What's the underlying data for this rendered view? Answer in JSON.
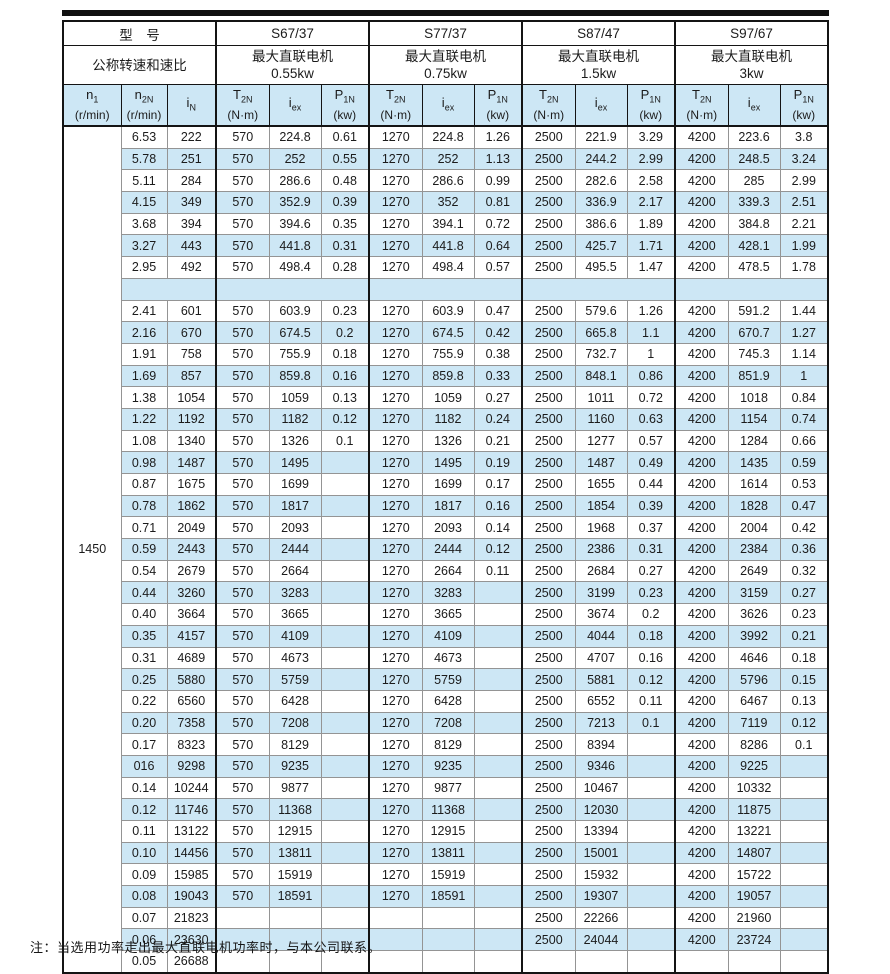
{
  "table": {
    "model_label": "型　号",
    "speed_ratio_label": "公称转速和速比",
    "models": [
      {
        "name": "S67/37",
        "motor_label": "最大直联电机",
        "power": "0.55kw"
      },
      {
        "name": "S77/37",
        "motor_label": "最大直联电机",
        "power": "0.75kw"
      },
      {
        "name": "S87/47",
        "motor_label": "最大直联电机",
        "power": "1.5kw"
      },
      {
        "name": "S97/67",
        "motor_label": "最大直联电机",
        "power": "3kw"
      }
    ],
    "columns": {
      "n1": {
        "base": "n",
        "sub": "1",
        "unit": "(r/min)"
      },
      "n2n": {
        "base": "n",
        "sub": "2N",
        "unit": "(r/min)"
      },
      "in": {
        "base": "i",
        "sub": "N",
        "unit": ""
      },
      "t2n": {
        "base": "T",
        "sub": "2N",
        "unit": "(N·m)"
      },
      "iex": {
        "base": "i",
        "sub": "ex",
        "unit": ""
      },
      "p1n": {
        "base": "P",
        "sub": "1N",
        "unit": "(kw)"
      }
    },
    "n1_value": "1450",
    "rows": [
      {
        "n2n": "6.53",
        "in": "222",
        "cells": [
          "570",
          "224.8",
          "0.61",
          "1270",
          "224.8",
          "1.26",
          "2500",
          "221.9",
          "3.29",
          "4200",
          "223.6",
          "3.8"
        ]
      },
      {
        "n2n": "5.78",
        "in": "251",
        "cells": [
          "570",
          "252",
          "0.55",
          "1270",
          "252",
          "1.13",
          "2500",
          "244.2",
          "2.99",
          "4200",
          "248.5",
          "3.24"
        ]
      },
      {
        "n2n": "5.11",
        "in": "284",
        "cells": [
          "570",
          "286.6",
          "0.48",
          "1270",
          "286.6",
          "0.99",
          "2500",
          "282.6",
          "2.58",
          "4200",
          "285",
          "2.99"
        ]
      },
      {
        "n2n": "4.15",
        "in": "349",
        "cells": [
          "570",
          "352.9",
          "0.39",
          "1270",
          "352",
          "0.81",
          "2500",
          "336.9",
          "2.17",
          "4200",
          "339.3",
          "2.51"
        ]
      },
      {
        "n2n": "3.68",
        "in": "394",
        "cells": [
          "570",
          "394.6",
          "0.35",
          "1270",
          "394.1",
          "0.72",
          "2500",
          "386.6",
          "1.89",
          "4200",
          "384.8",
          "2.21"
        ]
      },
      {
        "n2n": "3.27",
        "in": "443",
        "cells": [
          "570",
          "441.8",
          "0.31",
          "1270",
          "441.8",
          "0.64",
          "2500",
          "425.7",
          "1.71",
          "4200",
          "428.1",
          "1.99"
        ]
      },
      {
        "n2n": "2.95",
        "in": "492",
        "cells": [
          "570",
          "498.4",
          "0.28",
          "1270",
          "498.4",
          "0.57",
          "2500",
          "495.5",
          "1.47",
          "4200",
          "478.5",
          "1.78"
        ]
      },
      {
        "empty": true
      },
      {
        "n2n": "2.41",
        "in": "601",
        "cells": [
          "570",
          "603.9",
          "0.23",
          "1270",
          "603.9",
          "0.47",
          "2500",
          "579.6",
          "1.26",
          "4200",
          "591.2",
          "1.44"
        ]
      },
      {
        "n2n": "2.16",
        "in": "670",
        "cells": [
          "570",
          "674.5",
          "0.2",
          "1270",
          "674.5",
          "0.42",
          "2500",
          "665.8",
          "1.1",
          "4200",
          "670.7",
          "1.27"
        ]
      },
      {
        "n2n": "1.91",
        "in": "758",
        "cells": [
          "570",
          "755.9",
          "0.18",
          "1270",
          "755.9",
          "0.38",
          "2500",
          "732.7",
          "1",
          "4200",
          "745.3",
          "1.14"
        ]
      },
      {
        "n2n": "1.69",
        "in": "857",
        "cells": [
          "570",
          "859.8",
          "0.16",
          "1270",
          "859.8",
          "0.33",
          "2500",
          "848.1",
          "0.86",
          "4200",
          "851.9",
          "1"
        ]
      },
      {
        "n2n": "1.38",
        "in": "1054",
        "cells": [
          "570",
          "1059",
          "0.13",
          "1270",
          "1059",
          "0.27",
          "2500",
          "1011",
          "0.72",
          "4200",
          "1018",
          "0.84"
        ]
      },
      {
        "n2n": "1.22",
        "in": "1192",
        "cells": [
          "570",
          "1182",
          "0.12",
          "1270",
          "1182",
          "0.24",
          "2500",
          "1160",
          "0.63",
          "4200",
          "1154",
          "0.74"
        ]
      },
      {
        "n2n": "1.08",
        "in": "1340",
        "cells": [
          "570",
          "1326",
          "0.1",
          "1270",
          "1326",
          "0.21",
          "2500",
          "1277",
          "0.57",
          "4200",
          "1284",
          "0.66"
        ]
      },
      {
        "n2n": "0.98",
        "in": "1487",
        "cells": [
          "570",
          "1495",
          "",
          "1270",
          "1495",
          "0.19",
          "2500",
          "1487",
          "0.49",
          "4200",
          "1435",
          "0.59"
        ]
      },
      {
        "n2n": "0.87",
        "in": "1675",
        "cells": [
          "570",
          "1699",
          "",
          "1270",
          "1699",
          "0.17",
          "2500",
          "1655",
          "0.44",
          "4200",
          "1614",
          "0.53"
        ]
      },
      {
        "n2n": "0.78",
        "in": "1862",
        "cells": [
          "570",
          "1817",
          "",
          "1270",
          "1817",
          "0.16",
          "2500",
          "1854",
          "0.39",
          "4200",
          "1828",
          "0.47"
        ]
      },
      {
        "n2n": "0.71",
        "in": "2049",
        "cells": [
          "570",
          "2093",
          "",
          "1270",
          "2093",
          "0.14",
          "2500",
          "1968",
          "0.37",
          "4200",
          "2004",
          "0.42"
        ]
      },
      {
        "n2n": "0.59",
        "in": "2443",
        "cells": [
          "570",
          "2444",
          "",
          "1270",
          "2444",
          "0.12",
          "2500",
          "2386",
          "0.31",
          "4200",
          "2384",
          "0.36"
        ]
      },
      {
        "n2n": "0.54",
        "in": "2679",
        "cells": [
          "570",
          "2664",
          "",
          "1270",
          "2664",
          "0.11",
          "2500",
          "2684",
          "0.27",
          "4200",
          "2649",
          "0.32"
        ]
      },
      {
        "n2n": "0.44",
        "in": "3260",
        "cells": [
          "570",
          "3283",
          "",
          "1270",
          "3283",
          "",
          "2500",
          "3199",
          "0.23",
          "4200",
          "3159",
          "0.27"
        ]
      },
      {
        "n2n": "0.40",
        "in": "3664",
        "cells": [
          "570",
          "3665",
          "",
          "1270",
          "3665",
          "",
          "2500",
          "3674",
          "0.2",
          "4200",
          "3626",
          "0.23"
        ]
      },
      {
        "n2n": "0.35",
        "in": "4157",
        "cells": [
          "570",
          "4109",
          "",
          "1270",
          "4109",
          "",
          "2500",
          "4044",
          "0.18",
          "4200",
          "3992",
          "0.21"
        ]
      },
      {
        "n2n": "0.31",
        "in": "4689",
        "cells": [
          "570",
          "4673",
          "",
          "1270",
          "4673",
          "",
          "2500",
          "4707",
          "0.16",
          "4200",
          "4646",
          "0.18"
        ]
      },
      {
        "n2n": "0.25",
        "in": "5880",
        "cells": [
          "570",
          "5759",
          "",
          "1270",
          "5759",
          "",
          "2500",
          "5881",
          "0.12",
          "4200",
          "5796",
          "0.15"
        ]
      },
      {
        "n2n": "0.22",
        "in": "6560",
        "cells": [
          "570",
          "6428",
          "",
          "1270",
          "6428",
          "",
          "2500",
          "6552",
          "0.11",
          "4200",
          "6467",
          "0.13"
        ]
      },
      {
        "n2n": "0.20",
        "in": "7358",
        "cells": [
          "570",
          "7208",
          "",
          "1270",
          "7208",
          "",
          "2500",
          "7213",
          "0.1",
          "4200",
          "7119",
          "0.12"
        ]
      },
      {
        "n2n": "0.17",
        "in": "8323",
        "cells": [
          "570",
          "8129",
          "",
          "1270",
          "8129",
          "",
          "2500",
          "8394",
          "",
          "4200",
          "8286",
          "0.1"
        ]
      },
      {
        "n2n": "016",
        "in": "9298",
        "cells": [
          "570",
          "9235",
          "",
          "1270",
          "9235",
          "",
          "2500",
          "9346",
          "",
          "4200",
          "9225",
          ""
        ]
      },
      {
        "n2n": "0.14",
        "in": "10244",
        "cells": [
          "570",
          "9877",
          "",
          "1270",
          "9877",
          "",
          "2500",
          "10467",
          "",
          "4200",
          "10332",
          ""
        ]
      },
      {
        "n2n": "0.12",
        "in": "11746",
        "cells": [
          "570",
          "11368",
          "",
          "1270",
          "11368",
          "",
          "2500",
          "12030",
          "",
          "4200",
          "11875",
          ""
        ]
      },
      {
        "n2n": "0.11",
        "in": "13122",
        "cells": [
          "570",
          "12915",
          "",
          "1270",
          "12915",
          "",
          "2500",
          "13394",
          "",
          "4200",
          "13221",
          ""
        ]
      },
      {
        "n2n": "0.10",
        "in": "14456",
        "cells": [
          "570",
          "13811",
          "",
          "1270",
          "13811",
          "",
          "2500",
          "15001",
          "",
          "4200",
          "14807",
          ""
        ]
      },
      {
        "n2n": "0.09",
        "in": "15985",
        "cells": [
          "570",
          "15919",
          "",
          "1270",
          "15919",
          "",
          "2500",
          "15932",
          "",
          "4200",
          "15722",
          ""
        ]
      },
      {
        "n2n": "0.08",
        "in": "19043",
        "cells": [
          "570",
          "18591",
          "",
          "1270",
          "18591",
          "",
          "2500",
          "19307",
          "",
          "4200",
          "19057",
          ""
        ]
      },
      {
        "n2n": "0.07",
        "in": "21823",
        "cells": [
          "",
          "",
          "",
          "",
          "",
          "",
          "2500",
          "22266",
          "",
          "4200",
          "21960",
          ""
        ]
      },
      {
        "n2n": "0.06",
        "in": "23630",
        "cells": [
          "",
          "",
          "",
          "",
          "",
          "",
          "2500",
          "24044",
          "",
          "4200",
          "23724",
          ""
        ]
      },
      {
        "n2n": "0.05",
        "in": "26688",
        "cells": [
          "",
          "",
          "",
          "",
          "",
          "",
          "",
          "",
          "",
          "",
          "",
          ""
        ]
      }
    ]
  },
  "note": "注：当选用功率走出最大直联电机功率时，与本公司联系。",
  "colors": {
    "row_alt": "#cde7f5",
    "border_dark": "#141414",
    "border_light": "#949494"
  }
}
